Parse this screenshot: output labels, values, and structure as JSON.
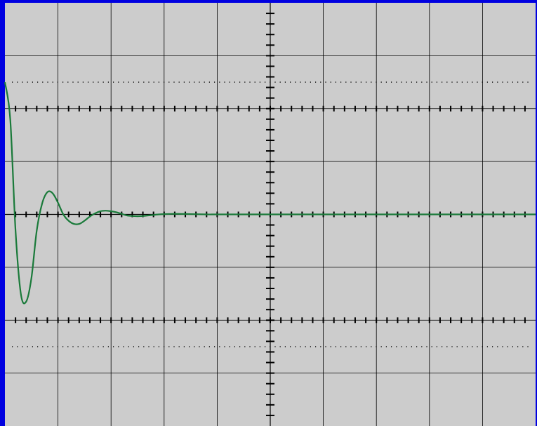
{
  "colors": {
    "frame": "#0000e0",
    "screen": "#cccccc",
    "grid": "#000000",
    "trace": "#1a7a3a"
  },
  "chart_data": {
    "type": "line",
    "title": "",
    "xlabel": "",
    "ylabel": "",
    "grid": true,
    "legend": "none",
    "xlim": [
      0,
      10
    ],
    "ylim": [
      -4,
      4
    ],
    "divisions": {
      "x": 10,
      "y": 8
    },
    "minor_ticks_per_division": 5,
    "reference_levels": [
      2.5,
      -2.5
    ],
    "series": [
      {
        "x": [
          0.0,
          0.1,
          0.2,
          0.3,
          0.4,
          0.5,
          0.6,
          0.7,
          0.8,
          0.9,
          1.0,
          1.1,
          1.2,
          1.3,
          1.4,
          1.5,
          1.6,
          1.7,
          1.8,
          1.9,
          2.0,
          2.1,
          2.2,
          2.3,
          2.4,
          2.5,
          2.6,
          2.7,
          2.8,
          2.9,
          3.0,
          3.2,
          3.4,
          3.6,
          3.8,
          4.0,
          4.5,
          5.0,
          6.0,
          7.0,
          8.0,
          9.0,
          10.0
        ],
        "values": [
          2.5,
          1.8,
          -0.3,
          -1.5,
          -1.65,
          -1.2,
          -0.3,
          0.2,
          0.42,
          0.4,
          0.22,
          0.0,
          -0.12,
          -0.18,
          -0.18,
          -0.12,
          -0.04,
          0.02,
          0.06,
          0.07,
          0.06,
          0.04,
          0.01,
          -0.02,
          -0.03,
          -0.035,
          -0.03,
          -0.02,
          -0.01,
          0.0,
          0.005,
          0.01,
          0.008,
          0.004,
          0.0,
          0.0,
          0.0,
          0.0,
          0.0,
          0.0,
          0.0,
          0.0,
          0.0
        ]
      }
    ]
  }
}
